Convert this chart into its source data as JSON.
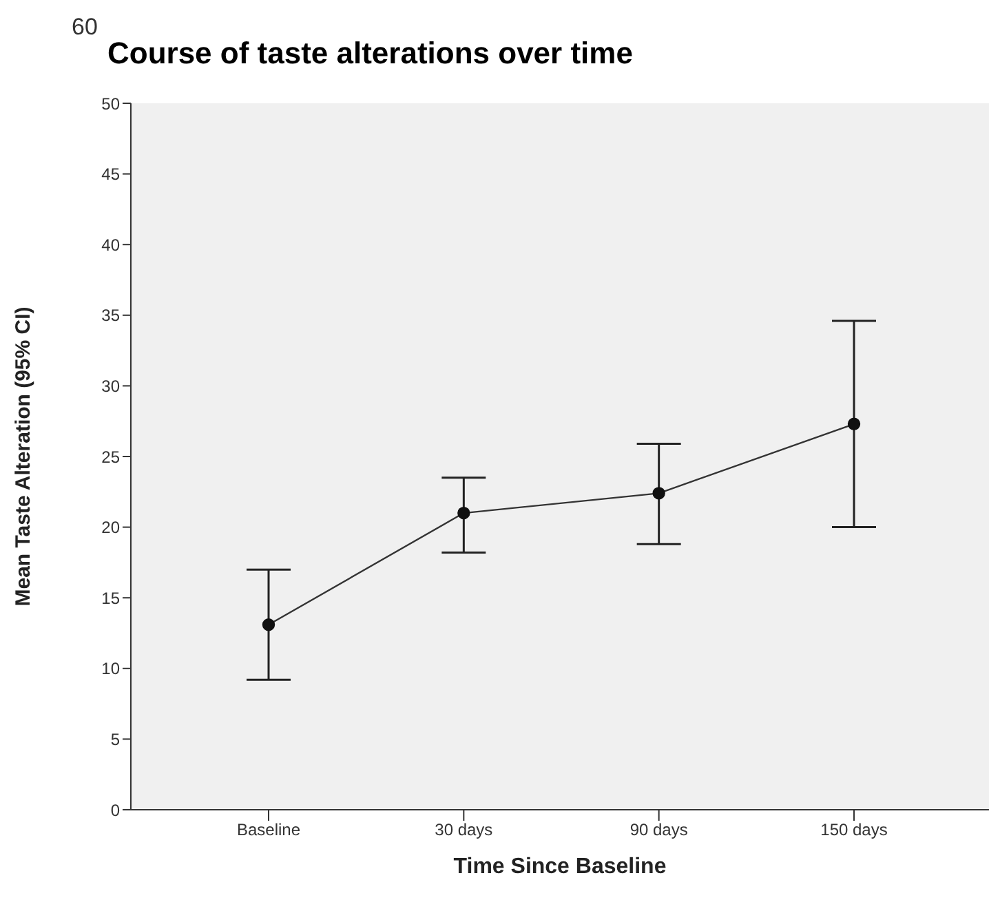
{
  "chart_data": {
    "type": "line",
    "title": "Course of taste alterations over time",
    "xlabel": "Time Since Baseline",
    "ylabel": "Mean Taste Alteration (95% CI)",
    "annotations": [
      "60"
    ],
    "categories": [
      "Baseline",
      "30 days",
      "90 days",
      "150 days"
    ],
    "series": [
      {
        "color": "#333333",
        "values": [
          13.1,
          21.0,
          22.4,
          27.3
        ],
        "errors": [
          [
            9.2,
            17.0
          ],
          [
            18.2,
            23.5
          ],
          [
            18.8,
            25.9
          ],
          [
            20.0,
            34.6
          ]
        ]
      }
    ],
    "ylim": [
      0,
      50
    ],
    "yticks": [
      0,
      5,
      10,
      15,
      20,
      25,
      30,
      35,
      40,
      45,
      50
    ],
    "grid": false,
    "marker": "circle",
    "line_style": "solid"
  }
}
